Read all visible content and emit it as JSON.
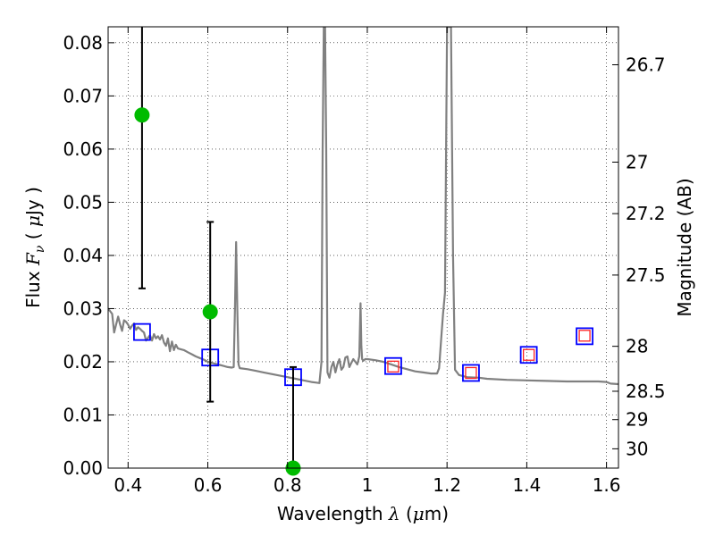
{
  "chart_data": {
    "type": "scatter",
    "xlabel": {
      "prefix": "Wavelength  ",
      "symbol": "λ",
      "suffix": " (",
      "unit_symbol": "μ",
      "unit": "m)"
    },
    "ylabel": {
      "prefix": "Flux  ",
      "symbol": "F",
      "subscript": "ν",
      "mid": "  ( ",
      "unit_symbol": "μ",
      "unit": "Jy )"
    },
    "y2label": "Magnitude (AB)",
    "xlim": [
      0.35,
      1.63
    ],
    "ylim": [
      0.0,
      0.083
    ],
    "grid": true,
    "x_ticks": [
      {
        "value": 0.4,
        "label": "0.4"
      },
      {
        "value": 0.6,
        "label": "0.6"
      },
      {
        "value": 0.8,
        "label": "0.8"
      },
      {
        "value": 1.0,
        "label": "1"
      },
      {
        "value": 1.2,
        "label": "1.2"
      },
      {
        "value": 1.4,
        "label": "1.4"
      },
      {
        "value": 1.6,
        "label": "1.6"
      }
    ],
    "y_ticks": [
      {
        "value": 0.0,
        "label": "0.00"
      },
      {
        "value": 0.01,
        "label": "0.01"
      },
      {
        "value": 0.02,
        "label": "0.02"
      },
      {
        "value": 0.03,
        "label": "0.03"
      },
      {
        "value": 0.04,
        "label": "0.04"
      },
      {
        "value": 0.05,
        "label": "0.05"
      },
      {
        "value": 0.06,
        "label": "0.06"
      },
      {
        "value": 0.07,
        "label": "0.07"
      },
      {
        "value": 0.08,
        "label": "0.08"
      }
    ],
    "y2_ticks": [
      {
        "mag": 26.7,
        "label": "26.7"
      },
      {
        "mag": 27.0,
        "label": "27"
      },
      {
        "mag": 27.2,
        "label": "27.2"
      },
      {
        "mag": 27.5,
        "label": "27.5"
      },
      {
        "mag": 28.0,
        "label": "28"
      },
      {
        "mag": 28.5,
        "label": "28.5"
      },
      {
        "mag": 29.0,
        "label": "29"
      },
      {
        "mag": 30.0,
        "label": "30"
      }
    ],
    "observed_points": {
      "color": "#00bb00",
      "errorbar_color": "#000000",
      "points": [
        {
          "x": 0.435,
          "y": 0.0664,
          "yerr_low": 0.0338,
          "yerr_high": 0.083
        },
        {
          "x": 0.606,
          "y": 0.0294,
          "yerr_low": 0.0125,
          "yerr_high": 0.0463
        },
        {
          "x": 0.814,
          "y": 0.0,
          "yerr_low": 0.0,
          "yerr_high": 0.019
        }
      ]
    },
    "model_photometry": {
      "color": "#0000ff",
      "points": [
        {
          "x": 0.435,
          "y": 0.0256
        },
        {
          "x": 0.606,
          "y": 0.0208
        },
        {
          "x": 0.814,
          "y": 0.0171
        },
        {
          "x": 1.065,
          "y": 0.0192
        },
        {
          "x": 1.26,
          "y": 0.0179
        },
        {
          "x": 1.405,
          "y": 0.0213
        },
        {
          "x": 1.545,
          "y": 0.0248
        }
      ]
    },
    "model_photometry_alt": {
      "color": "#ff2222",
      "points": [
        {
          "x": 1.065,
          "y": 0.0191
        },
        {
          "x": 1.26,
          "y": 0.0179
        },
        {
          "x": 1.405,
          "y": 0.0213
        },
        {
          "x": 1.545,
          "y": 0.0249
        }
      ]
    },
    "spectrum": {
      "color": "#808080",
      "x": [
        0.35,
        0.36,
        0.365,
        0.37,
        0.375,
        0.38,
        0.385,
        0.39,
        0.395,
        0.4,
        0.405,
        0.41,
        0.415,
        0.42,
        0.425,
        0.43,
        0.435,
        0.44,
        0.445,
        0.45,
        0.455,
        0.46,
        0.465,
        0.47,
        0.475,
        0.48,
        0.485,
        0.49,
        0.495,
        0.5,
        0.505,
        0.51,
        0.515,
        0.52,
        0.525,
        0.53,
        0.54,
        0.55,
        0.56,
        0.57,
        0.58,
        0.59,
        0.6,
        0.61,
        0.62,
        0.63,
        0.64,
        0.65,
        0.66,
        0.665,
        0.668,
        0.671,
        0.674,
        0.677,
        0.68,
        0.7,
        0.72,
        0.74,
        0.76,
        0.78,
        0.8,
        0.82,
        0.84,
        0.86,
        0.87,
        0.88,
        0.885,
        0.888,
        0.891,
        0.894,
        0.897,
        0.9,
        0.905,
        0.91,
        0.915,
        0.92,
        0.925,
        0.93,
        0.935,
        0.94,
        0.945,
        0.95,
        0.955,
        0.96,
        0.965,
        0.97,
        0.975,
        0.98,
        0.983,
        0.985,
        0.987,
        0.99,
        0.995,
        1.0,
        1.02,
        1.04,
        1.06,
        1.08,
        1.1,
        1.12,
        1.14,
        1.16,
        1.175,
        1.18,
        1.185,
        1.19,
        1.195,
        1.2,
        1.205,
        1.21,
        1.215,
        1.22,
        1.23,
        1.25,
        1.28,
        1.3,
        1.35,
        1.4,
        1.45,
        1.5,
        1.55,
        1.58,
        1.6,
        1.61,
        1.63
      ],
      "y": [
        0.03,
        0.029,
        0.0255,
        0.027,
        0.0285,
        0.027,
        0.0258,
        0.0278,
        0.0275,
        0.027,
        0.0262,
        0.0268,
        0.0272,
        0.026,
        0.0265,
        0.0262,
        0.0258,
        0.0255,
        0.024,
        0.0245,
        0.025,
        0.024,
        0.0252,
        0.0244,
        0.0248,
        0.0242,
        0.025,
        0.0236,
        0.023,
        0.0244,
        0.022,
        0.0238,
        0.0222,
        0.0232,
        0.0225,
        0.0224,
        0.0222,
        0.0218,
        0.0214,
        0.021,
        0.0207,
        0.0204,
        0.02,
        0.0198,
        0.0196,
        0.0194,
        0.0192,
        0.019,
        0.0189,
        0.019,
        0.03,
        0.0425,
        0.03,
        0.0195,
        0.0188,
        0.0186,
        0.0183,
        0.018,
        0.0177,
        0.0174,
        0.0171,
        0.0168,
        0.0165,
        0.0162,
        0.0161,
        0.016,
        0.02,
        0.06,
        0.083,
        0.083,
        0.06,
        0.018,
        0.017,
        0.019,
        0.02,
        0.018,
        0.0195,
        0.0205,
        0.0185,
        0.019,
        0.0208,
        0.021,
        0.019,
        0.0198,
        0.0205,
        0.02,
        0.0195,
        0.021,
        0.031,
        0.023,
        0.0205,
        0.0202,
        0.0205,
        0.0205,
        0.0203,
        0.02,
        0.0195,
        0.019,
        0.0186,
        0.0182,
        0.018,
        0.0178,
        0.0178,
        0.0188,
        0.024,
        0.029,
        0.033,
        0.083,
        0.083,
        0.083,
        0.04,
        0.0185,
        0.0175,
        0.0171,
        0.017,
        0.0168,
        0.0166,
        0.0165,
        0.0164,
        0.0163,
        0.0163,
        0.0163,
        0.0162,
        0.0159,
        0.0158
      ]
    }
  }
}
